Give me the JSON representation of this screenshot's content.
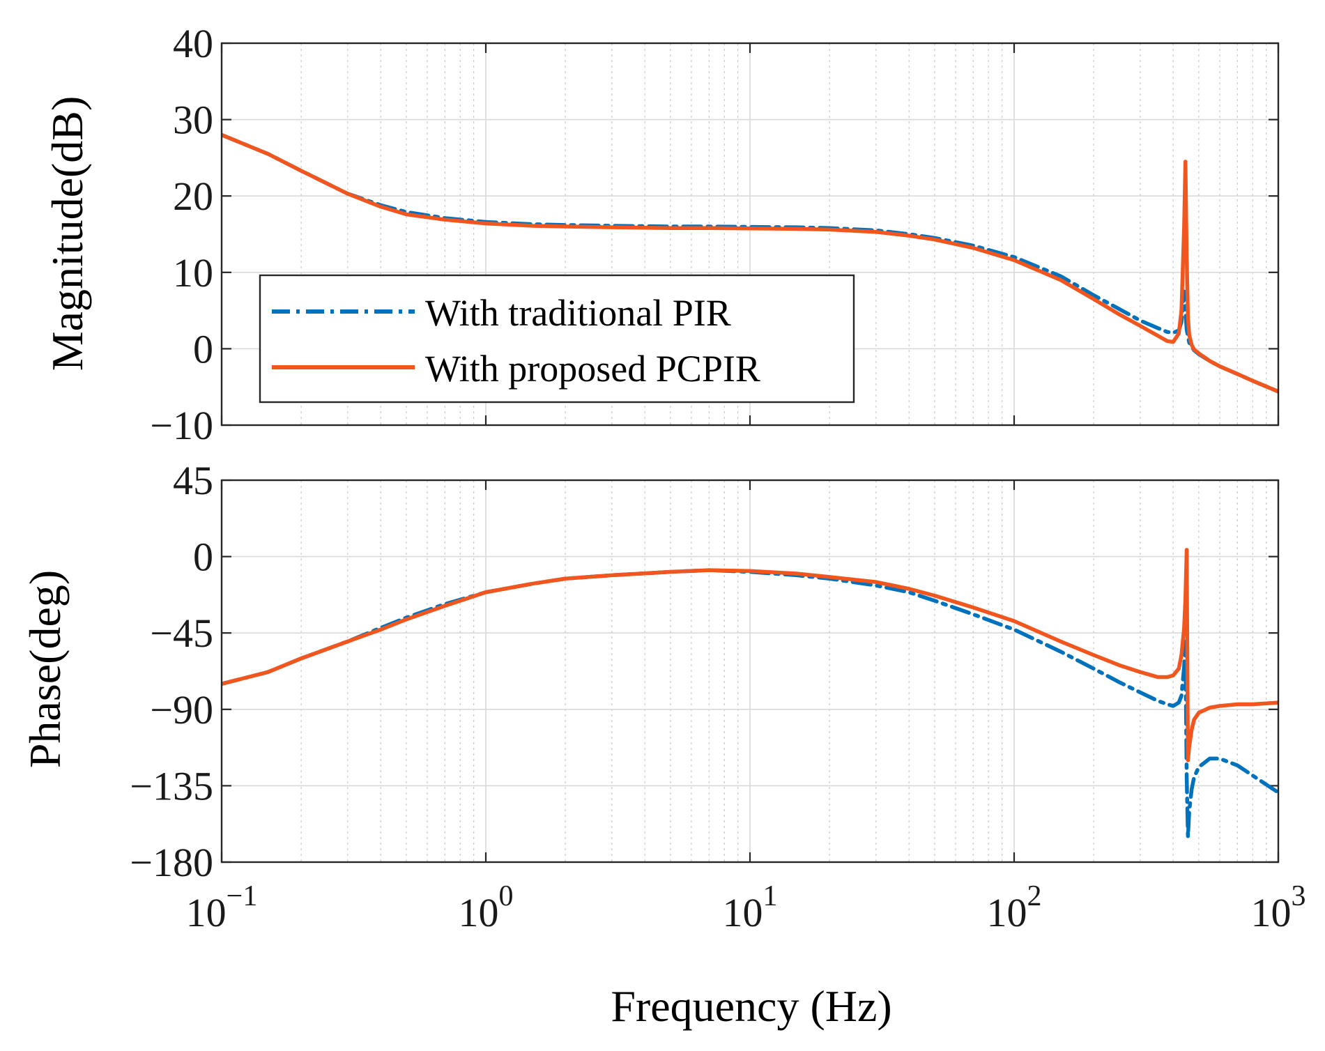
{
  "chart_data": [
    {
      "type": "line",
      "id": "magnitude",
      "xscale": "log",
      "xlim": [
        0.1,
        1000
      ],
      "ylim": [
        -10,
        40
      ],
      "yticks": [
        40,
        30,
        20,
        10,
        0,
        -10
      ],
      "ytick_labels": [
        "40",
        "30",
        "20",
        "10",
        "0",
        "−10"
      ],
      "ylabel": "Magnitude(dB)",
      "grid": true,
      "legend": "inside-lower-left",
      "series": [
        {
          "name": "With traditional PIR",
          "color": "#0072BD",
          "style": "dashdot",
          "x": [
            0.1,
            0.15,
            0.2,
            0.3,
            0.4,
            0.5,
            0.7,
            1,
            1.5,
            2,
            3,
            5,
            7,
            10,
            15,
            20,
            30,
            40,
            50,
            70,
            100,
            150,
            200,
            250,
            300,
            350,
            380,
            400,
            420,
            430,
            440,
            450,
            460,
            480,
            500,
            550,
            600,
            700,
            800,
            1000
          ],
          "values": [
            28,
            25.5,
            23.3,
            20.3,
            18.8,
            17.9,
            17.1,
            16.6,
            16.3,
            16.2,
            16.1,
            16.0,
            16.0,
            15.95,
            15.9,
            15.8,
            15.5,
            15.0,
            14.5,
            13.5,
            12.0,
            9.5,
            7.0,
            5.2,
            3.7,
            2.7,
            2.2,
            2.1,
            2.4,
            3.5,
            7.5,
            2.5,
            0.8,
            -0.2,
            -0.7,
            -1.6,
            -2.3,
            -3.3,
            -4.2,
            -5.6
          ]
        },
        {
          "name": "With proposed PCPIR",
          "color": "#F0561E",
          "style": "solid",
          "x": [
            0.1,
            0.15,
            0.2,
            0.3,
            0.4,
            0.5,
            0.7,
            1,
            1.5,
            2,
            3,
            5,
            7,
            10,
            15,
            20,
            30,
            40,
            50,
            70,
            100,
            150,
            200,
            250,
            300,
            350,
            380,
            400,
            420,
            430,
            440,
            445,
            450,
            455,
            460,
            470,
            480,
            500,
            550,
            600,
            700,
            800,
            1000
          ],
          "values": [
            28,
            25.5,
            23.3,
            20.3,
            18.6,
            17.6,
            16.9,
            16.4,
            16.1,
            16.0,
            15.9,
            15.8,
            15.8,
            15.75,
            15.7,
            15.6,
            15.3,
            14.8,
            14.3,
            13.2,
            11.6,
            9.0,
            6.5,
            4.5,
            3.0,
            1.7,
            1.0,
            0.9,
            2.0,
            5.0,
            16.0,
            24.5,
            12.0,
            4.0,
            1.8,
            0.5,
            -0.1,
            -0.6,
            -1.6,
            -2.3,
            -3.3,
            -4.2,
            -5.6
          ]
        }
      ]
    },
    {
      "type": "line",
      "id": "phase",
      "xscale": "log",
      "xlim": [
        0.1,
        1000
      ],
      "ylim": [
        -180,
        45
      ],
      "yticks": [
        45,
        0,
        -45,
        -90,
        -135,
        -180
      ],
      "ytick_labels": [
        "45",
        "0",
        "−45",
        "−90",
        "−135",
        "−180"
      ],
      "xticks": [
        0.1,
        1,
        10,
        100,
        1000
      ],
      "xtick_labels": [
        {
          "base": "10",
          "exp": "−1"
        },
        {
          "base": "10",
          "exp": "0"
        },
        {
          "base": "10",
          "exp": "1"
        },
        {
          "base": "10",
          "exp": "2"
        },
        {
          "base": "10",
          "exp": "3"
        }
      ],
      "xlabel": "Frequency (Hz)",
      "ylabel": "Phase(deg)",
      "grid": true,
      "series": [
        {
          "name": "With traditional PIR",
          "color": "#0072BD",
          "style": "dashdot",
          "x": [
            0.1,
            0.15,
            0.2,
            0.3,
            0.4,
            0.5,
            0.7,
            1,
            1.5,
            2,
            3,
            5,
            7,
            10,
            15,
            20,
            30,
            40,
            50,
            70,
            100,
            150,
            200,
            250,
            300,
            350,
            380,
            400,
            420,
            430,
            440,
            445,
            450,
            455,
            460,
            470,
            480,
            500,
            550,
            600,
            700,
            800,
            1000
          ],
          "values": [
            -75,
            -68,
            -60,
            -50,
            -42,
            -36,
            -28,
            -21,
            -16,
            -13,
            -11,
            -9,
            -8,
            -9,
            -11,
            -13,
            -17,
            -21,
            -26,
            -34,
            -43,
            -56,
            -66,
            -74,
            -80,
            -85,
            -87,
            -88,
            -86,
            -82,
            -65,
            -50,
            -130,
            -165,
            -150,
            -137,
            -130,
            -124,
            -119,
            -119,
            -123,
            -129,
            -139
          ]
        },
        {
          "name": "With proposed PCPIR",
          "color": "#F0561E",
          "style": "solid",
          "x": [
            0.1,
            0.15,
            0.2,
            0.3,
            0.4,
            0.5,
            0.7,
            1,
            1.5,
            2,
            3,
            5,
            7,
            10,
            15,
            20,
            30,
            40,
            50,
            70,
            100,
            150,
            200,
            250,
            300,
            350,
            380,
            400,
            420,
            430,
            440,
            445,
            450,
            455,
            460,
            470,
            480,
            500,
            550,
            600,
            700,
            800,
            1000
          ],
          "values": [
            -75,
            -68,
            -60,
            -50,
            -43,
            -37,
            -29,
            -21,
            -16,
            -13,
            -11,
            -9,
            -8,
            -8.5,
            -10,
            -12,
            -15,
            -19,
            -23,
            -30,
            -38,
            -50,
            -58,
            -64,
            -68,
            -71,
            -71,
            -70,
            -66,
            -58,
            -42,
            -25,
            4,
            -120,
            -112,
            -102,
            -96,
            -92,
            -89,
            -88,
            -87,
            -87,
            -86
          ]
        }
      ]
    }
  ]
}
